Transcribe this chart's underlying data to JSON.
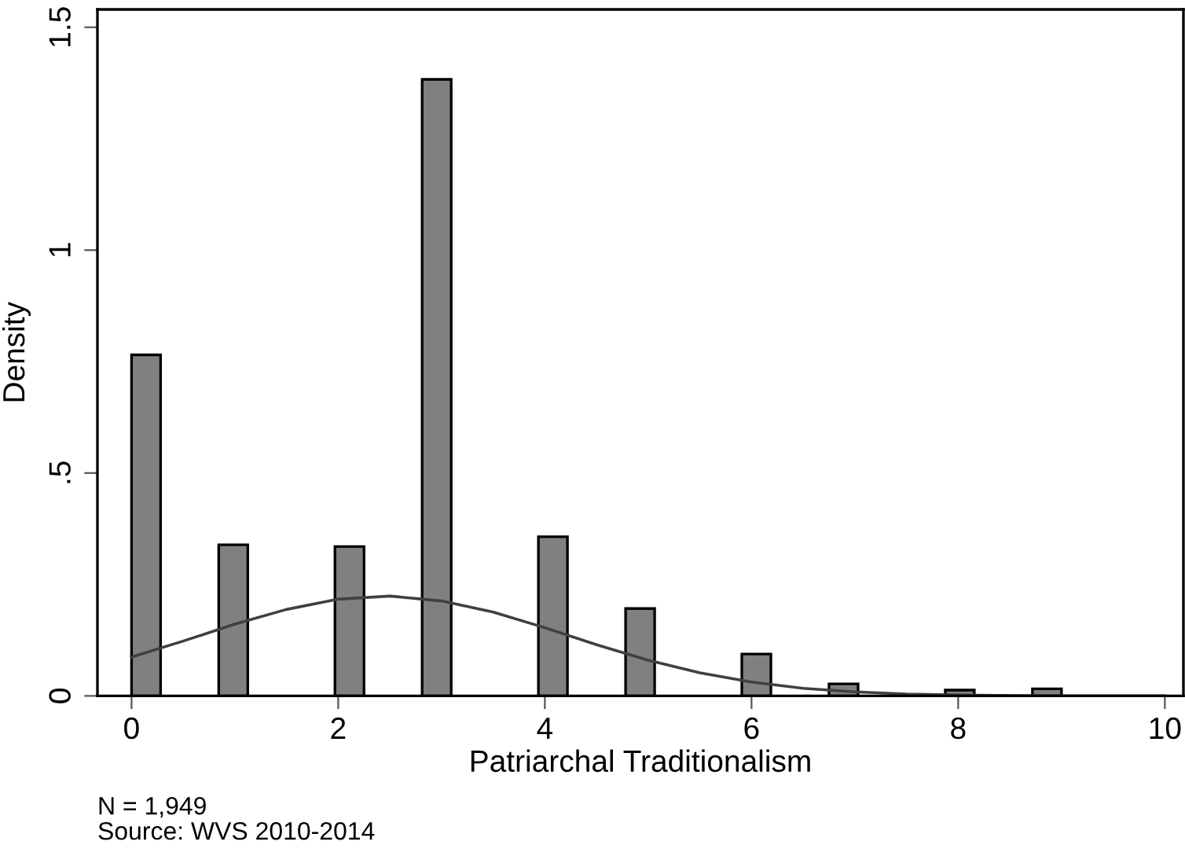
{
  "chart_data": {
    "type": "histogram",
    "xlabel": "Patriarchal Traditionalism",
    "ylabel": "Density",
    "bins": [
      0,
      0.28125,
      0.5625,
      0.84375,
      1.125,
      1.40625,
      1.6875,
      1.96875,
      2.25,
      2.53125,
      2.8125,
      3.09375,
      3.375,
      3.65625,
      3.9375,
      4.21875,
      4.5,
      4.78125,
      5.0625,
      5.34375,
      5.625,
      5.90625,
      6.1875,
      6.46875,
      6.75,
      7.03125,
      7.3125,
      7.59375,
      7.875,
      8.15625,
      8.4375,
      8.71875,
      9
    ],
    "values": [
      0.765,
      0,
      0,
      0.339,
      0,
      0,
      0,
      0.335,
      0,
      0,
      1.383,
      0,
      0,
      0,
      0.357,
      0,
      0,
      0.196,
      0,
      0,
      0,
      0.094,
      0,
      0,
      0.027,
      0,
      0,
      0,
      0.013,
      0,
      0,
      0.016
    ],
    "color": "#808080",
    "series": [
      {
        "type": "line",
        "color": "#404040",
        "x": [
          0,
          0.5,
          1,
          1.5,
          2,
          2.5,
          3,
          3.5,
          4,
          4.5,
          5,
          5.5,
          6,
          6.5,
          7,
          7.5,
          8,
          9,
          10
        ],
        "values": [
          0.087,
          0.123,
          0.161,
          0.194,
          0.217,
          0.224,
          0.213,
          0.188,
          0.153,
          0.115,
          0.08,
          0.052,
          0.031,
          0.017,
          0.009,
          0.004,
          0.002,
          0,
          0
        ]
      }
    ],
    "xlim": [
      -0.33,
      10.18
    ],
    "ylim": [
      0,
      1.54
    ],
    "xticks": [
      0,
      2,
      4,
      6,
      8,
      10
    ],
    "yticks": [
      0,
      {
        "value": 0.5,
        "label": ".5"
      },
      1,
      1.5
    ],
    "grid": false,
    "annotations": [
      "N = 1,949",
      "Source: WVS 2010-2014"
    ]
  }
}
